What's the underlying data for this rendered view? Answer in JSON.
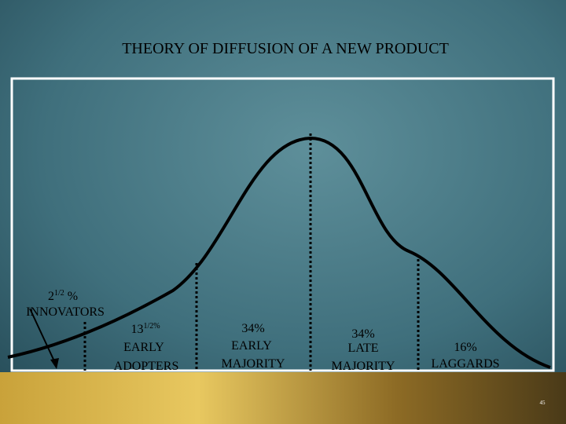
{
  "title": "THEORY OF DIFFUSION OF A NEW PRODUCT",
  "segments": [
    {
      "share": {
        "main": "2",
        "sup": "1/2",
        "suffix": " %"
      },
      "label": [
        "INNOVATORS"
      ]
    },
    {
      "share": {
        "main": "13",
        "sup": "1/2%"
      },
      "label": [
        "EARLY",
        "ADOPTERS"
      ]
    },
    {
      "share": {
        "main": "34%"
      },
      "label": [
        "EARLY",
        "MAJORITY"
      ]
    },
    {
      "share": {
        "main": "34%"
      },
      "label": [
        "LATE",
        "MAJORITY"
      ]
    },
    {
      "share": {
        "main": "16%"
      },
      "label": [
        "LAGGARDS"
      ]
    }
  ],
  "page_number": "45"
}
